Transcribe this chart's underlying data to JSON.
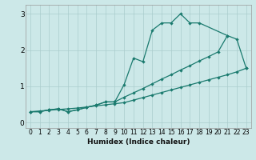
{
  "xlabel": "Humidex (Indice chaleur)",
  "bg_color": "#cce8e8",
  "grid_color": "#aacccc",
  "line_color": "#1a7a6e",
  "xlim": [
    -0.5,
    23.5
  ],
  "ylim": [
    -0.15,
    3.25
  ],
  "yticks": [
    0,
    1,
    2,
    3
  ],
  "xticks": [
    0,
    1,
    2,
    3,
    4,
    5,
    6,
    7,
    8,
    9,
    10,
    11,
    12,
    13,
    14,
    15,
    16,
    17,
    18,
    19,
    20,
    21,
    22,
    23
  ],
  "line1_x": [
    0,
    1,
    2,
    3,
    4,
    5,
    6,
    7,
    8,
    9,
    10,
    11,
    12,
    13,
    14,
    15,
    16,
    17,
    18,
    21
  ],
  "line1_y": [
    0.3,
    0.3,
    0.35,
    0.38,
    0.3,
    0.35,
    0.42,
    0.48,
    0.57,
    0.57,
    1.05,
    1.78,
    1.68,
    2.55,
    2.75,
    2.75,
    3.0,
    2.75,
    2.75,
    2.4
  ],
  "line2_x": [
    0,
    1,
    2,
    3,
    4,
    5,
    6,
    7,
    8,
    9,
    10,
    11,
    12,
    13,
    14,
    15,
    16,
    17,
    18,
    19,
    20,
    21,
    22,
    23
  ],
  "line2_y": [
    0.3,
    0.3,
    0.35,
    0.38,
    0.3,
    0.35,
    0.42,
    0.48,
    0.57,
    0.57,
    0.7,
    0.82,
    0.94,
    1.07,
    1.2,
    1.32,
    1.45,
    1.57,
    1.7,
    1.82,
    1.95,
    2.4,
    2.3,
    1.5
  ],
  "line3_x": [
    0,
    1,
    2,
    3,
    4,
    5,
    6,
    7,
    8,
    9,
    10,
    11,
    12,
    13,
    14,
    15,
    16,
    17,
    18,
    19,
    20,
    21,
    22,
    23
  ],
  "line3_y": [
    0.3,
    0.32,
    0.34,
    0.36,
    0.38,
    0.4,
    0.43,
    0.46,
    0.49,
    0.52,
    0.55,
    0.62,
    0.69,
    0.76,
    0.83,
    0.9,
    0.97,
    1.04,
    1.11,
    1.18,
    1.25,
    1.32,
    1.4,
    1.5
  ]
}
